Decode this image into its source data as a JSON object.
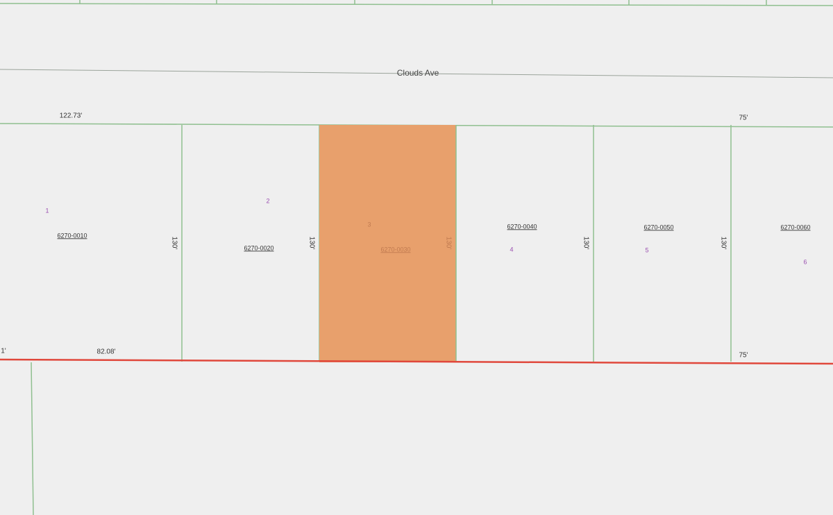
{
  "street": "Clouds Ave",
  "dimensions": {
    "top_left": "122.73'",
    "top_right": "75'",
    "bottom_edge": "1'",
    "bottom_left": "82.08'",
    "bottom_right": "75'"
  },
  "parcels": [
    {
      "lot": "1",
      "id": "6270-0010",
      "depth": "130'"
    },
    {
      "lot": "2",
      "id": "6270-0020",
      "depth": "130'"
    },
    {
      "lot": "3",
      "id": "6270-0030",
      "depth": "130'"
    },
    {
      "lot": "4",
      "id": "6270-0040",
      "depth": "130'"
    },
    {
      "lot": "5",
      "id": "6270-0050",
      "depth": "130'"
    },
    {
      "lot": "6",
      "id": "6270-0060"
    }
  ]
}
